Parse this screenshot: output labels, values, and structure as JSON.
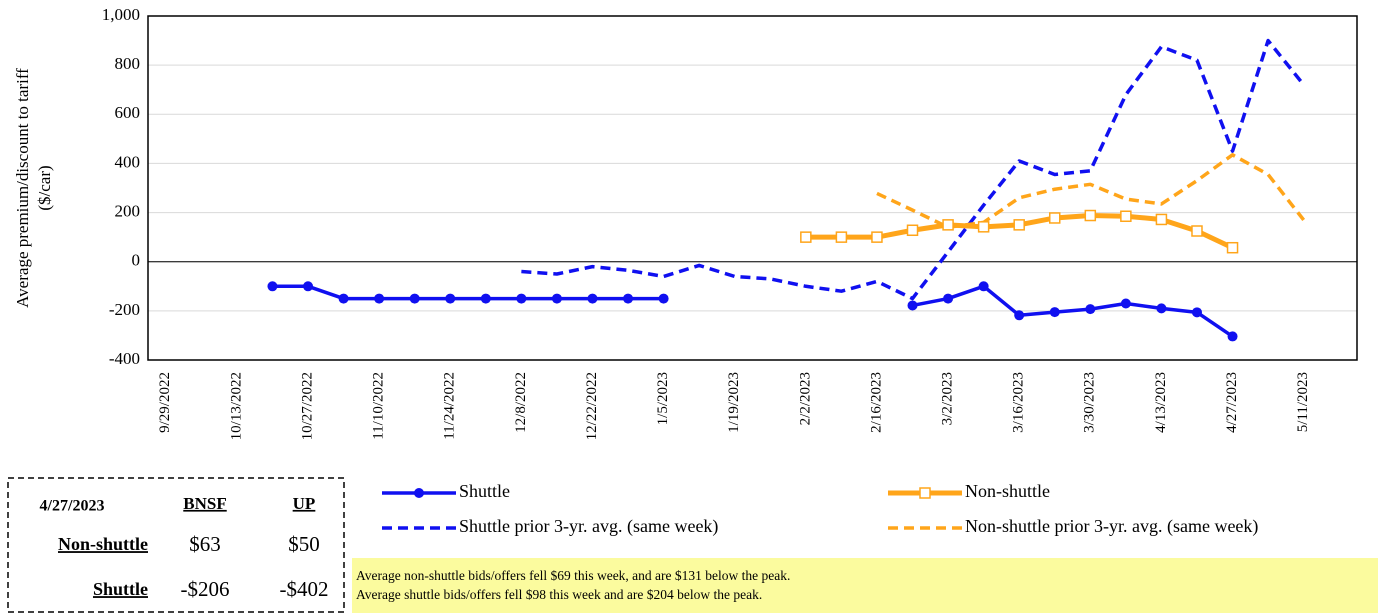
{
  "chart_data": {
    "type": "line",
    "y_label": [
      "Average premium/discount  to tariff",
      "($/car)"
    ],
    "categories": [
      "9/29/2022",
      null,
      "10/13/2022",
      null,
      "10/27/2022",
      null,
      "11/10/2022",
      null,
      "11/24/2022",
      null,
      "12/8/2022",
      null,
      "12/22/2022",
      null,
      "1/5/2023",
      null,
      "1/19/2023",
      null,
      "2/2/2023",
      null,
      "2/16/2023",
      null,
      "3/2/2023",
      null,
      "3/16/2023",
      null,
      "3/30/2023",
      null,
      "4/13/2023",
      null,
      "4/27/2023",
      null,
      "5/11/2023",
      null
    ],
    "series": [
      {
        "name": "Shuttle",
        "color": "#1010f0",
        "style": "solid",
        "marker": "circle",
        "values": [
          null,
          null,
          null,
          -100,
          -100,
          -150,
          -150,
          -150,
          -150,
          -150,
          -150,
          -150,
          -150,
          -150,
          -150,
          null,
          null,
          null,
          null,
          null,
          null,
          -178,
          -150,
          -100,
          -218,
          -205,
          -193,
          -170,
          -190,
          -206,
          -304,
          null,
          null,
          null
        ]
      },
      {
        "name": "Non-shuttle",
        "color": "#ffa51a",
        "style": "solid",
        "marker": "square",
        "values": [
          null,
          null,
          null,
          null,
          null,
          null,
          null,
          null,
          null,
          null,
          null,
          null,
          null,
          null,
          null,
          null,
          null,
          null,
          100,
          100,
          100,
          128,
          150,
          142,
          150,
          178,
          188,
          185,
          172,
          125,
          57,
          null,
          null,
          null
        ]
      },
      {
        "name": "Shuttle prior 3-yr. avg. (same week)",
        "color": "#1010f0",
        "style": "dashed",
        "values": [
          null,
          null,
          null,
          null,
          null,
          null,
          null,
          null,
          null,
          null,
          -40,
          -50,
          -20,
          -35,
          -60,
          -15,
          -60,
          -70,
          -100,
          -120,
          -80,
          -150,
          40,
          230,
          410,
          355,
          370,
          680,
          875,
          820,
          450,
          900,
          720,
          null
        ]
      },
      {
        "name": "Non-shuttle prior 3-yr. avg. (same week)",
        "color": "#ffa51a",
        "style": "dashed",
        "values": [
          null,
          null,
          null,
          null,
          null,
          null,
          null,
          null,
          null,
          null,
          null,
          null,
          null,
          null,
          null,
          null,
          null,
          null,
          null,
          null,
          278,
          210,
          140,
          160,
          260,
          295,
          315,
          255,
          235,
          330,
          435,
          355,
          170,
          null
        ]
      }
    ],
    "ylim": [
      -400,
      1000
    ],
    "yticks": [
      -400,
      -200,
      0,
      200,
      400,
      600,
      800,
      {
        "value": 1000,
        "label": "1,000"
      }
    ],
    "grid": true
  },
  "table": {
    "header": [
      "4/27/2023",
      "BNSF",
      "UP"
    ],
    "rows": [
      [
        "Non-shuttle",
        "$63",
        "$50"
      ],
      [
        "Shuttle",
        "-$206",
        "-$402"
      ]
    ]
  },
  "notes": [
    "Average non-shuttle bids/offers fell $69 this week, and are $131 below the peak.",
    "Average shuttle bids/offers fell $98 this week and are $204 below the peak."
  ]
}
